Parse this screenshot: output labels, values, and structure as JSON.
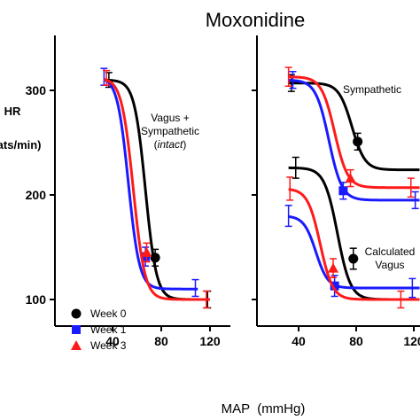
{
  "chart_data": {
    "type": "line",
    "title": "Moxonidine",
    "xlabel": "MAP  (mmHg)",
    "ylabel": "HR\nbeats/min)",
    "xlim": [
      20,
      124
    ],
    "ylim": [
      68,
      350
    ],
    "xticks": [
      "40",
      "80",
      "120"
    ],
    "yticks": [
      "100",
      "200",
      "300"
    ],
    "legend": {
      "placement": "bottom-left",
      "entries": [
        {
          "label": "Week 0",
          "color": "#000000",
          "marker": "circle"
        },
        {
          "label": "Week 1",
          "color": "#1a1aff",
          "marker": "square"
        },
        {
          "label": "Week 3",
          "color": "#ff1a1a",
          "marker": "triangle"
        }
      ]
    },
    "panels": [
      {
        "id": "left",
        "annotations": [
          {
            "text": "Vagus +",
            "italic": false
          },
          {
            "text": "Sympathetic",
            "italic": false
          },
          {
            "text": "(intact)",
            "italic_word": "intact"
          }
        ],
        "series": [
          {
            "name": "Week 0",
            "color": "#000000",
            "curve": {
              "max": 310,
              "min": 100,
              "x50": 67,
              "slope": 0.22,
              "xmin": 33,
              "xmax": 120
            },
            "points": [
              {
                "x": 37,
                "y": 310,
                "err": 7,
                "marker": "none"
              },
              {
                "x": 75,
                "y": 140,
                "err": 8,
                "marker": "circle"
              },
              {
                "x": 118,
                "y": 100,
                "err": 8,
                "marker": "none"
              }
            ]
          },
          {
            "name": "Week 1",
            "color": "#1a1aff",
            "curve": {
              "max": 313,
              "min": 110,
              "x50": 53,
              "slope": 0.22,
              "xmin": 33,
              "xmax": 110
            },
            "points": [
              {
                "x": 33,
                "y": 313,
                "err": 8,
                "marker": "none"
              },
              {
                "x": 67,
                "y": 141,
                "err": 9,
                "marker": "square"
              },
              {
                "x": 108,
                "y": 111,
                "err": 8,
                "marker": "none"
              }
            ]
          },
          {
            "name": "Week 3",
            "color": "#ff1a1a",
            "curve": {
              "max": 312,
              "min": 100,
              "x50": 57,
              "slope": 0.21,
              "xmin": 33,
              "xmax": 120
            },
            "points": [
              {
                "x": 35,
                "y": 312,
                "err": 7,
                "marker": "none"
              },
              {
                "x": 68,
                "y": 145,
                "err": 9,
                "marker": "triangle"
              },
              {
                "x": 117,
                "y": 100,
                "err": 8,
                "marker": "none"
              }
            ]
          }
        ]
      },
      {
        "id": "right",
        "annotations": [
          {
            "text": "Sympathetic"
          },
          {
            "text": "Calculated"
          },
          {
            "text": "Vagus"
          }
        ],
        "series": [
          {
            "name": "Week 0",
            "group": "Sympathetic",
            "color": "#000000",
            "curve": {
              "max": 307,
              "min": 224,
              "x50": 77,
              "slope": 0.22,
              "xmin": 33,
              "xmax": 124
            },
            "points": [
              {
                "x": 35,
                "y": 307,
                "err": 8,
                "marker": "none"
              },
              {
                "x": 81,
                "y": 251,
                "err": 8,
                "marker": "circle"
              }
            ]
          },
          {
            "name": "Week 1",
            "group": "Sympathetic",
            "color": "#1a1aff",
            "curve": {
              "max": 310,
              "min": 195,
              "x50": 61,
              "slope": 0.22,
              "xmin": 33,
              "xmax": 124
            },
            "points": [
              {
                "x": 36,
                "y": 310,
                "err": 8,
                "marker": "none"
              },
              {
                "x": 71,
                "y": 204,
                "err": 8,
                "marker": "square"
              },
              {
                "x": 121,
                "y": 195,
                "err": 8,
                "marker": "none"
              }
            ]
          },
          {
            "name": "Week 3",
            "group": "Sympathetic",
            "color": "#ff1a1a",
            "curve": {
              "max": 313,
              "min": 207,
              "x50": 65,
              "slope": 0.22,
              "xmin": 33,
              "xmax": 124
            },
            "points": [
              {
                "x": 33,
                "y": 313,
                "err": 9,
                "marker": "none"
              },
              {
                "x": 76,
                "y": 216,
                "err": 8,
                "marker": "triangle"
              },
              {
                "x": 118,
                "y": 207,
                "err": 9,
                "marker": "none"
              }
            ]
          },
          {
            "name": "Week 0",
            "group": "Calculated Vagus",
            "color": "#000000",
            "curve": {
              "max": 226,
              "min": 100,
              "x50": 67,
              "slope": 0.22,
              "xmin": 33,
              "xmax": 124
            },
            "points": [
              {
                "x": 38,
                "y": 226,
                "err": 10,
                "marker": "none"
              },
              {
                "x": 78,
                "y": 139,
                "err": 10,
                "marker": "circle"
              }
            ]
          },
          {
            "name": "Week 1",
            "group": "Calculated Vagus",
            "color": "#1a1aff",
            "curve": {
              "max": 180,
              "min": 111,
              "x50": 52,
              "slope": 0.24,
              "xmin": 33,
              "xmax": 124
            },
            "points": [
              {
                "x": 33,
                "y": 180,
                "err": 10,
                "marker": "none"
              },
              {
                "x": 65,
                "y": 113,
                "err": 10,
                "marker": "square"
              },
              {
                "x": 119,
                "y": 111,
                "err": 9,
                "marker": "none"
              }
            ]
          },
          {
            "name": "Week 3",
            "group": "Calculated Vagus",
            "color": "#ff1a1a",
            "curve": {
              "max": 206,
              "min": 100,
              "x50": 55,
              "slope": 0.23,
              "xmin": 33,
              "xmax": 124
            },
            "points": [
              {
                "x": 34,
                "y": 206,
                "err": 11,
                "marker": "none"
              },
              {
                "x": 64,
                "y": 130,
                "err": 9,
                "marker": "triangle"
              },
              {
                "x": 111,
                "y": 100,
                "err": 8,
                "marker": "none"
              }
            ]
          }
        ]
      }
    ]
  }
}
